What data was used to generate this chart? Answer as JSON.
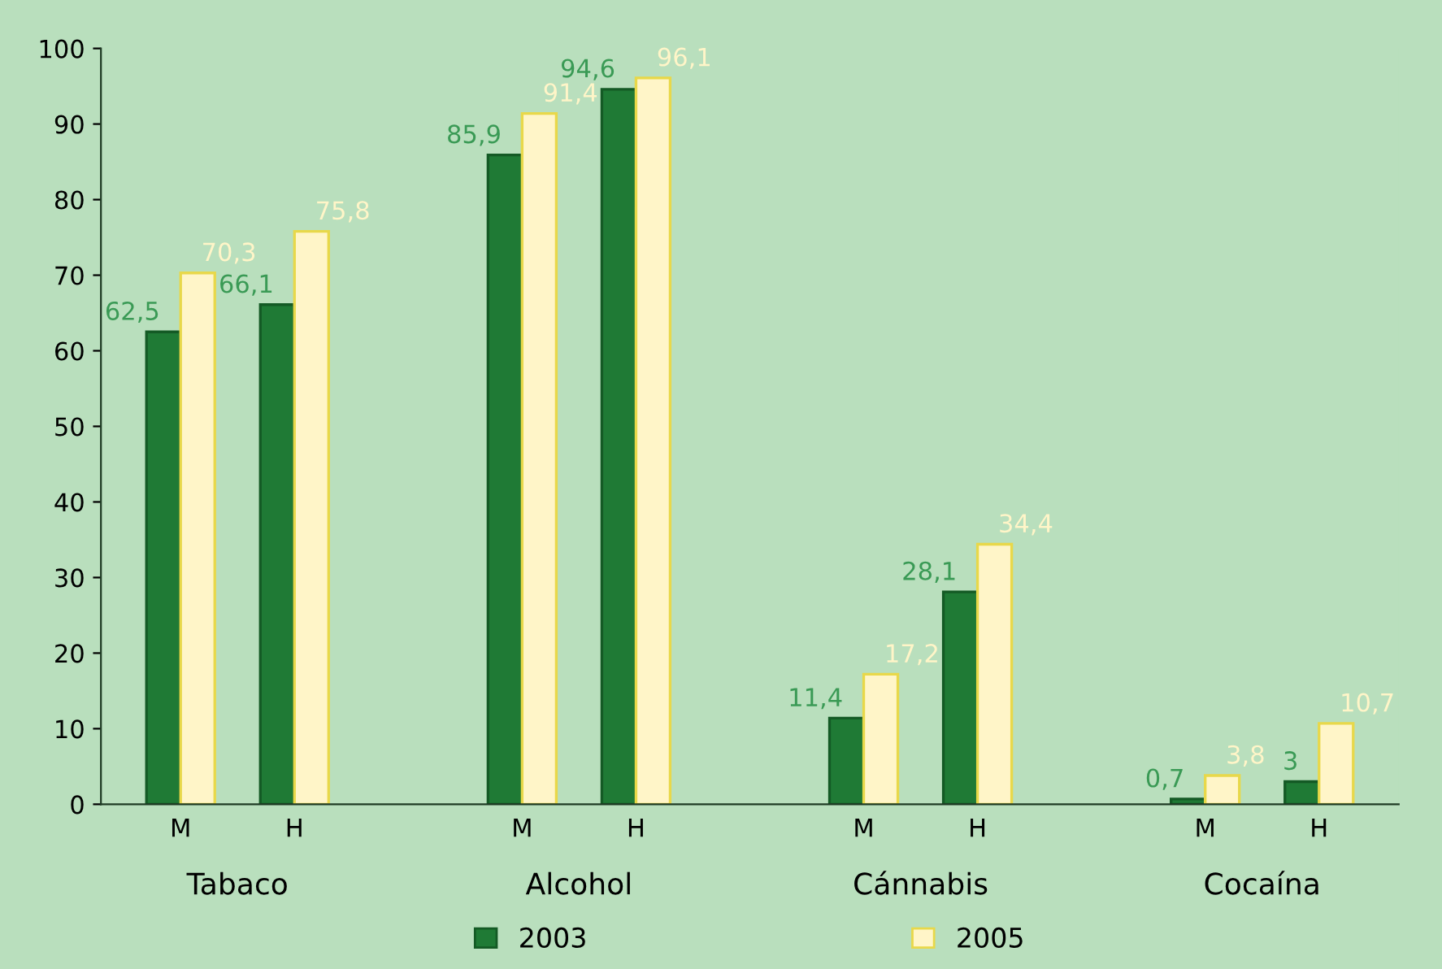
{
  "chart_data": {
    "type": "bar",
    "categories": [
      "M",
      "H",
      null,
      "M",
      "H",
      null,
      "M",
      "H",
      null,
      "M",
      "H"
    ],
    "series": [
      {
        "name": "2003",
        "color": "#1f7a35",
        "values": [
          62.5,
          66.1,
          null,
          85.9,
          94.6,
          null,
          11.4,
          28.1,
          null,
          0.7,
          3
        ],
        "value_labels": [
          "62,5",
          "66,1",
          null,
          "85,9",
          "94,6",
          null,
          "11,4",
          "28,1",
          null,
          "0,7",
          "3"
        ]
      },
      {
        "name": "2005",
        "color": "#fff5c8",
        "values": [
          70.3,
          75.8,
          null,
          91.4,
          96.1,
          null,
          17.2,
          34.4,
          null,
          3.8,
          10.7
        ],
        "value_labels": [
          "70,3",
          "75,8",
          null,
          "91,4",
          "96,1",
          null,
          "17,2",
          "34,4",
          null,
          "3,8",
          "10,7"
        ]
      }
    ],
    "annotations": [
      "Tabaco",
      "Alcohol",
      "Cánnabis",
      "Cocaína"
    ],
    "ylim": [
      0,
      100
    ],
    "yticks": [
      0,
      10,
      20,
      30,
      40,
      50,
      60,
      70,
      80,
      90,
      100
    ],
    "grid": false,
    "legend": "bottom"
  }
}
